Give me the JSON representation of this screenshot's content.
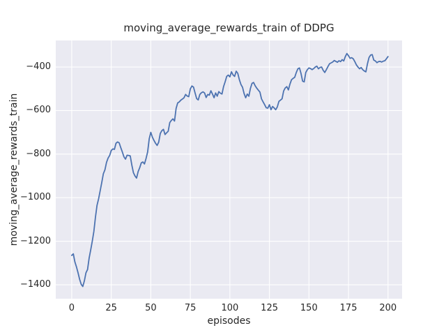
{
  "chart_data": {
    "type": "line",
    "title": "moving_average_rewards_train of DDPG",
    "xlabel": "episodes",
    "ylabel": "moving_average_rewards_train",
    "series": [
      {
        "name": "moving_average_rewards_train",
        "x_start": 0,
        "x_step": 1,
        "values": [
          -1265,
          -1258,
          -1295,
          -1318,
          -1345,
          -1375,
          -1398,
          -1408,
          -1382,
          -1345,
          -1330,
          -1278,
          -1240,
          -1200,
          -1155,
          -1090,
          -1035,
          -1005,
          -968,
          -930,
          -890,
          -872,
          -838,
          -818,
          -806,
          -783,
          -776,
          -778,
          -750,
          -744,
          -748,
          -770,
          -790,
          -812,
          -823,
          -805,
          -806,
          -808,
          -850,
          -885,
          -900,
          -910,
          -880,
          -862,
          -840,
          -836,
          -845,
          -820,
          -790,
          -730,
          -700,
          -722,
          -737,
          -750,
          -760,
          -745,
          -705,
          -692,
          -686,
          -710,
          -702,
          -695,
          -655,
          -645,
          -638,
          -648,
          -590,
          -565,
          -560,
          -552,
          -547,
          -541,
          -526,
          -533,
          -536,
          -500,
          -487,
          -492,
          -519,
          -545,
          -551,
          -526,
          -518,
          -514,
          -519,
          -540,
          -526,
          -529,
          -509,
          -524,
          -541,
          -519,
          -534,
          -513,
          -520,
          -524,
          -490,
          -468,
          -443,
          -437,
          -445,
          -422,
          -436,
          -443,
          -419,
          -429,
          -458,
          -480,
          -493,
          -522,
          -541,
          -524,
          -534,
          -498,
          -475,
          -471,
          -486,
          -497,
          -506,
          -515,
          -546,
          -560,
          -573,
          -587,
          -589,
          -573,
          -596,
          -581,
          -588,
          -596,
          -583,
          -558,
          -552,
          -546,
          -510,
          -496,
          -490,
          -505,
          -478,
          -458,
          -452,
          -447,
          -425,
          -408,
          -404,
          -430,
          -465,
          -468,
          -425,
          -412,
          -404,
          -407,
          -412,
          -407,
          -400,
          -396,
          -408,
          -402,
          -400,
          -415,
          -425,
          -412,
          -398,
          -385,
          -381,
          -377,
          -370,
          -374,
          -378,
          -371,
          -375,
          -366,
          -372,
          -352,
          -338,
          -348,
          -360,
          -357,
          -362,
          -375,
          -390,
          -400,
          -408,
          -402,
          -412,
          -418,
          -422,
          -385,
          -356,
          -345,
          -343,
          -368,
          -372,
          -380,
          -375,
          -374,
          -377,
          -373,
          -371,
          -362,
          -352
        ]
      }
    ],
    "xlim": [
      -10.1,
      208.9
    ],
    "ylim": [
      -1464,
      -278
    ],
    "xticks": {
      "values": [
        0,
        25,
        50,
        75,
        100,
        125,
        150,
        175,
        200
      ],
      "labels": [
        "0",
        "25",
        "50",
        "75",
        "100",
        "125",
        "150",
        "175",
        "200"
      ]
    },
    "yticks": {
      "values": [
        -400,
        -600,
        -800,
        -1000,
        -1200,
        -1400
      ],
      "labels": [
        "−400",
        "−600",
        "−800",
        "−1000",
        "−1200",
        "−1400"
      ]
    },
    "grid": true,
    "legend": null,
    "colors": {
      "line": "#4C72B0",
      "plot_bg": "#EAEAF2",
      "grid": "#FFFFFF",
      "text": "#262626",
      "figure_bg": "#FFFFFF"
    }
  }
}
